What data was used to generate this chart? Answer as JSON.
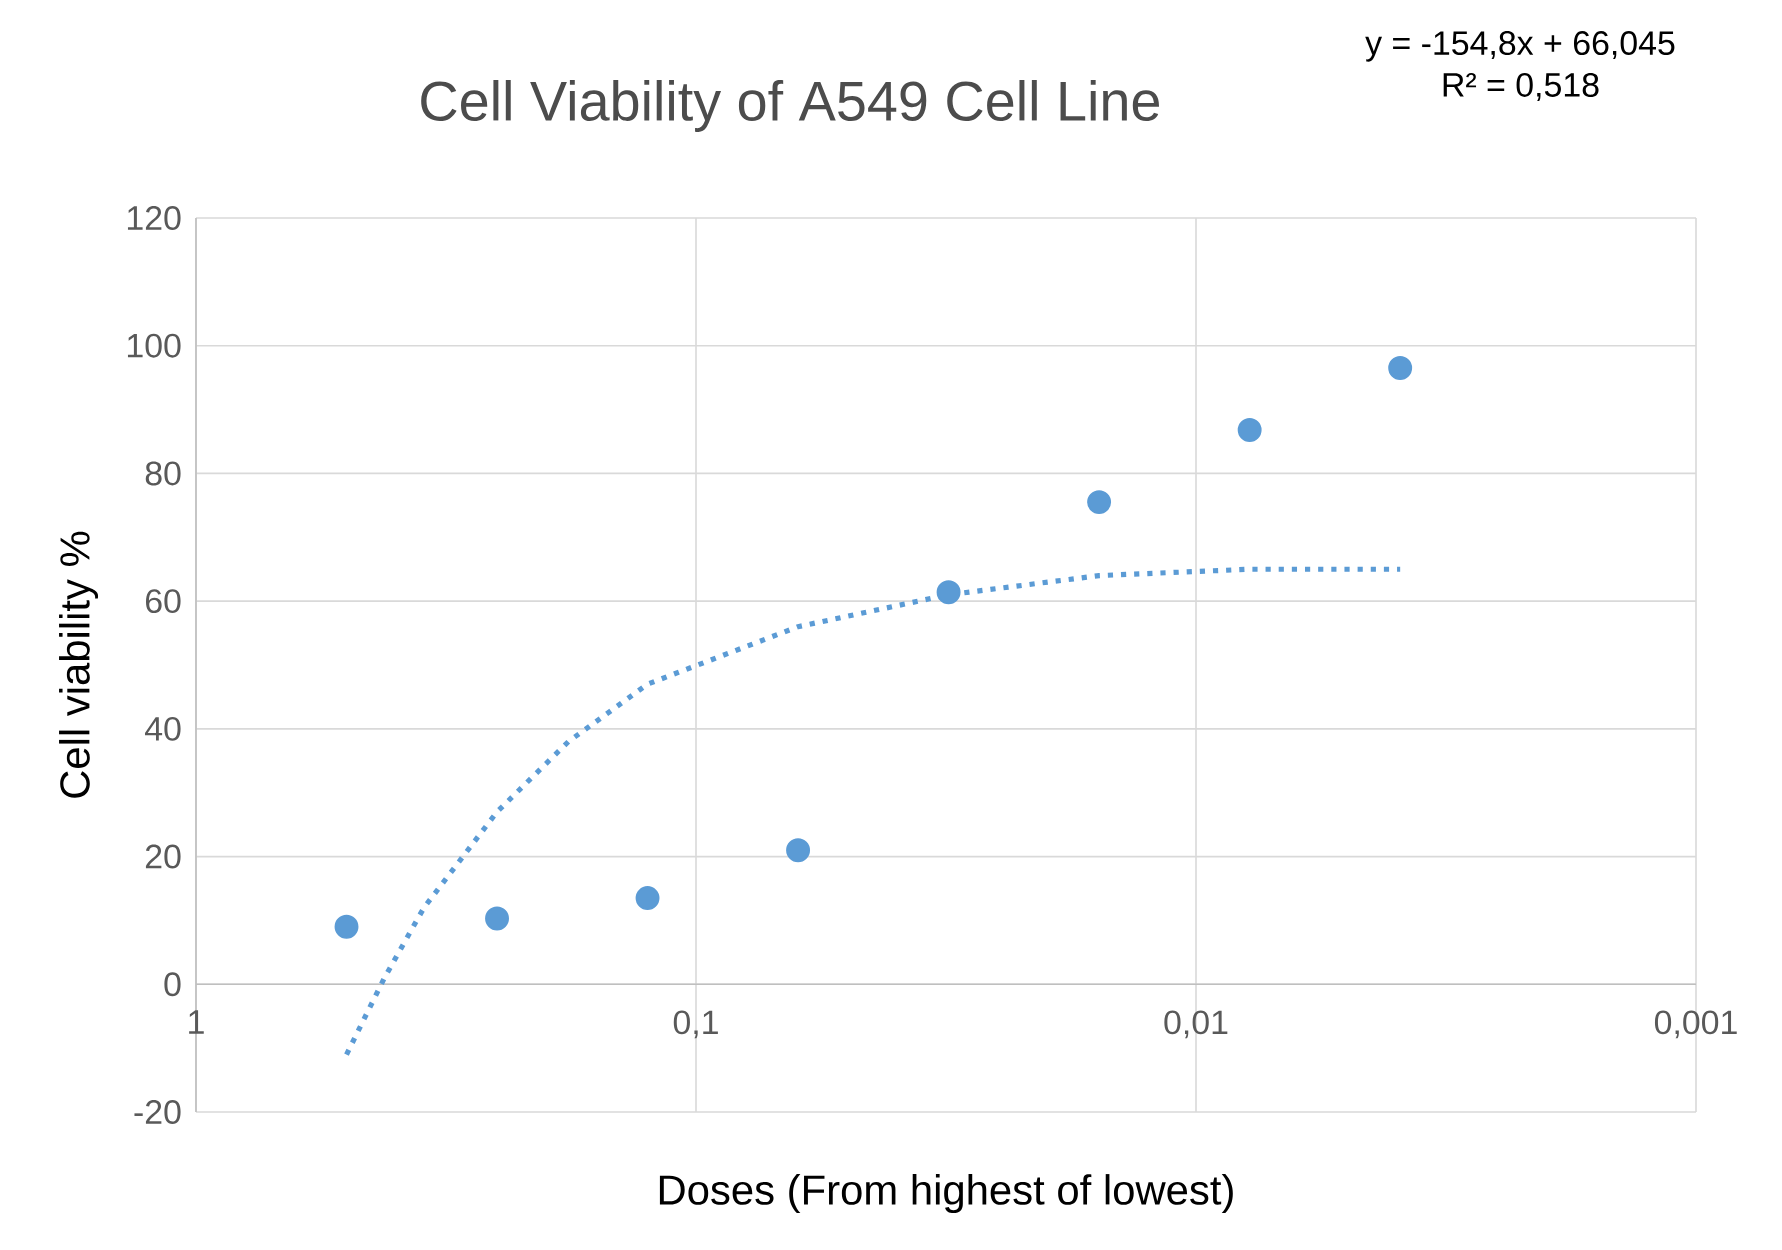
{
  "chart_data": {
    "type": "scatter",
    "title": "Cell Viability of A549 Cell Line",
    "xlabel": "Doses (From highest of lowest)",
    "ylabel": "Cell viability %",
    "annotations": [
      "y = -154,8x + 66,045",
      "R² = 0,518"
    ],
    "log": "x",
    "xlim": [
      1,
      0.001
    ],
    "xticks": [
      1,
      {
        "value": 0.1,
        "label": "0,1"
      },
      {
        "value": 0.01,
        "label": "0,01"
      },
      {
        "value": 0.001,
        "label": "0,001"
      }
    ],
    "ylim": [
      -20,
      120
    ],
    "yticks": [
      -20,
      0,
      20,
      40,
      60,
      80,
      100,
      120
    ],
    "grid": true,
    "series": [
      {
        "color": "#5b9bd5",
        "marker": "circle",
        "x": [
          0.5,
          0.25,
          0.125,
          0.0625,
          0.03125,
          0.015625,
          0.0078125,
          0.00390625
        ],
        "values": [
          9,
          10.3,
          13.5,
          21,
          61.4,
          75.5,
          86.8,
          96.5
        ]
      },
      {
        "type": "line",
        "color": "#5b9bd5",
        "marker": "none",
        "line_style": "dotted",
        "x": [
          0.5,
          0.42,
          0.35,
          0.25,
          0.18,
          0.125,
          0.0625,
          0.03125,
          0.015625,
          0.0078125,
          0.00390625
        ],
        "values": [
          -11,
          1,
          12,
          27,
          38,
          47,
          56,
          61,
          64,
          65,
          65
        ]
      }
    ]
  }
}
